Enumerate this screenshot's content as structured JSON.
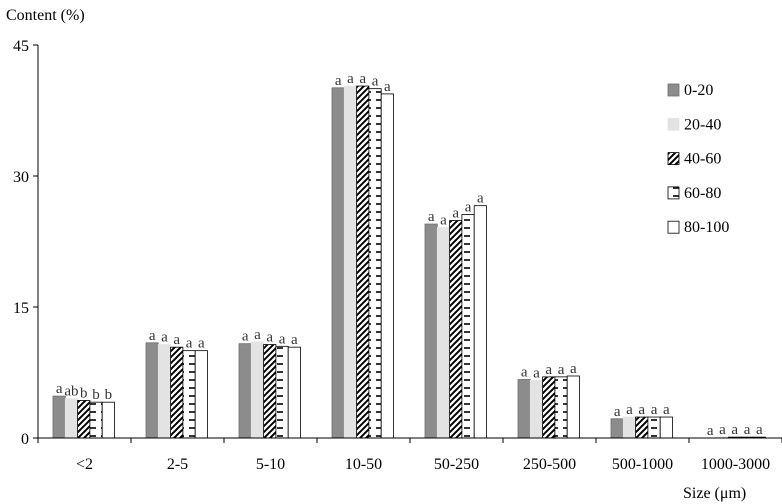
{
  "chart_data": {
    "type": "bar",
    "ylabel": "Content (%)",
    "xlabel": "Size (μm)",
    "ylim": [
      0,
      45
    ],
    "yticks": [
      0,
      15,
      30,
      45
    ],
    "categories": [
      "<2",
      "2-5",
      "5-10",
      "10-50",
      "50-250",
      "250-500",
      "500-1000",
      "1000-3000"
    ],
    "series": [
      {
        "name": "0-20",
        "color": "#8c8c8c",
        "pattern": "solid-dark",
        "values": [
          4.8,
          10.9,
          10.8,
          40.1,
          24.5,
          6.7,
          2.2,
          0.0
        ],
        "letters": [
          "a",
          "a",
          "a",
          "a",
          "a",
          "a",
          "a",
          "a"
        ]
      },
      {
        "name": "20-40",
        "color": "#e3e3e3",
        "pattern": "solid-light",
        "values": [
          4.5,
          10.7,
          11.0,
          40.3,
          24.1,
          6.6,
          2.4,
          0.1
        ],
        "letters": [
          "ab",
          "a",
          "a",
          "a",
          "a",
          "a",
          "a",
          "a"
        ]
      },
      {
        "name": "40-60",
        "color": "#ffffff",
        "pattern": "diagonal",
        "values": [
          4.3,
          10.4,
          10.7,
          40.3,
          24.9,
          7.0,
          2.4,
          0.1
        ],
        "letters": [
          "b",
          "a",
          "a",
          "a",
          "a",
          "a",
          "a",
          "a"
        ]
      },
      {
        "name": "60-80",
        "color": "#ffffff",
        "pattern": "dashes",
        "values": [
          4.1,
          10.0,
          10.5,
          40.0,
          25.6,
          7.0,
          2.4,
          0.1
        ],
        "letters": [
          "b",
          "a",
          "a",
          "a",
          "a",
          "a",
          "a",
          "a"
        ]
      },
      {
        "name": "80-100",
        "color": "#ffffff",
        "pattern": "empty",
        "values": [
          4.1,
          10.0,
          10.4,
          39.4,
          26.6,
          7.1,
          2.4,
          0.1
        ],
        "letters": [
          "b",
          "a",
          "a",
          "a",
          "a",
          "a",
          "a",
          "a"
        ]
      }
    ],
    "legend_position": "right",
    "grid": false
  }
}
